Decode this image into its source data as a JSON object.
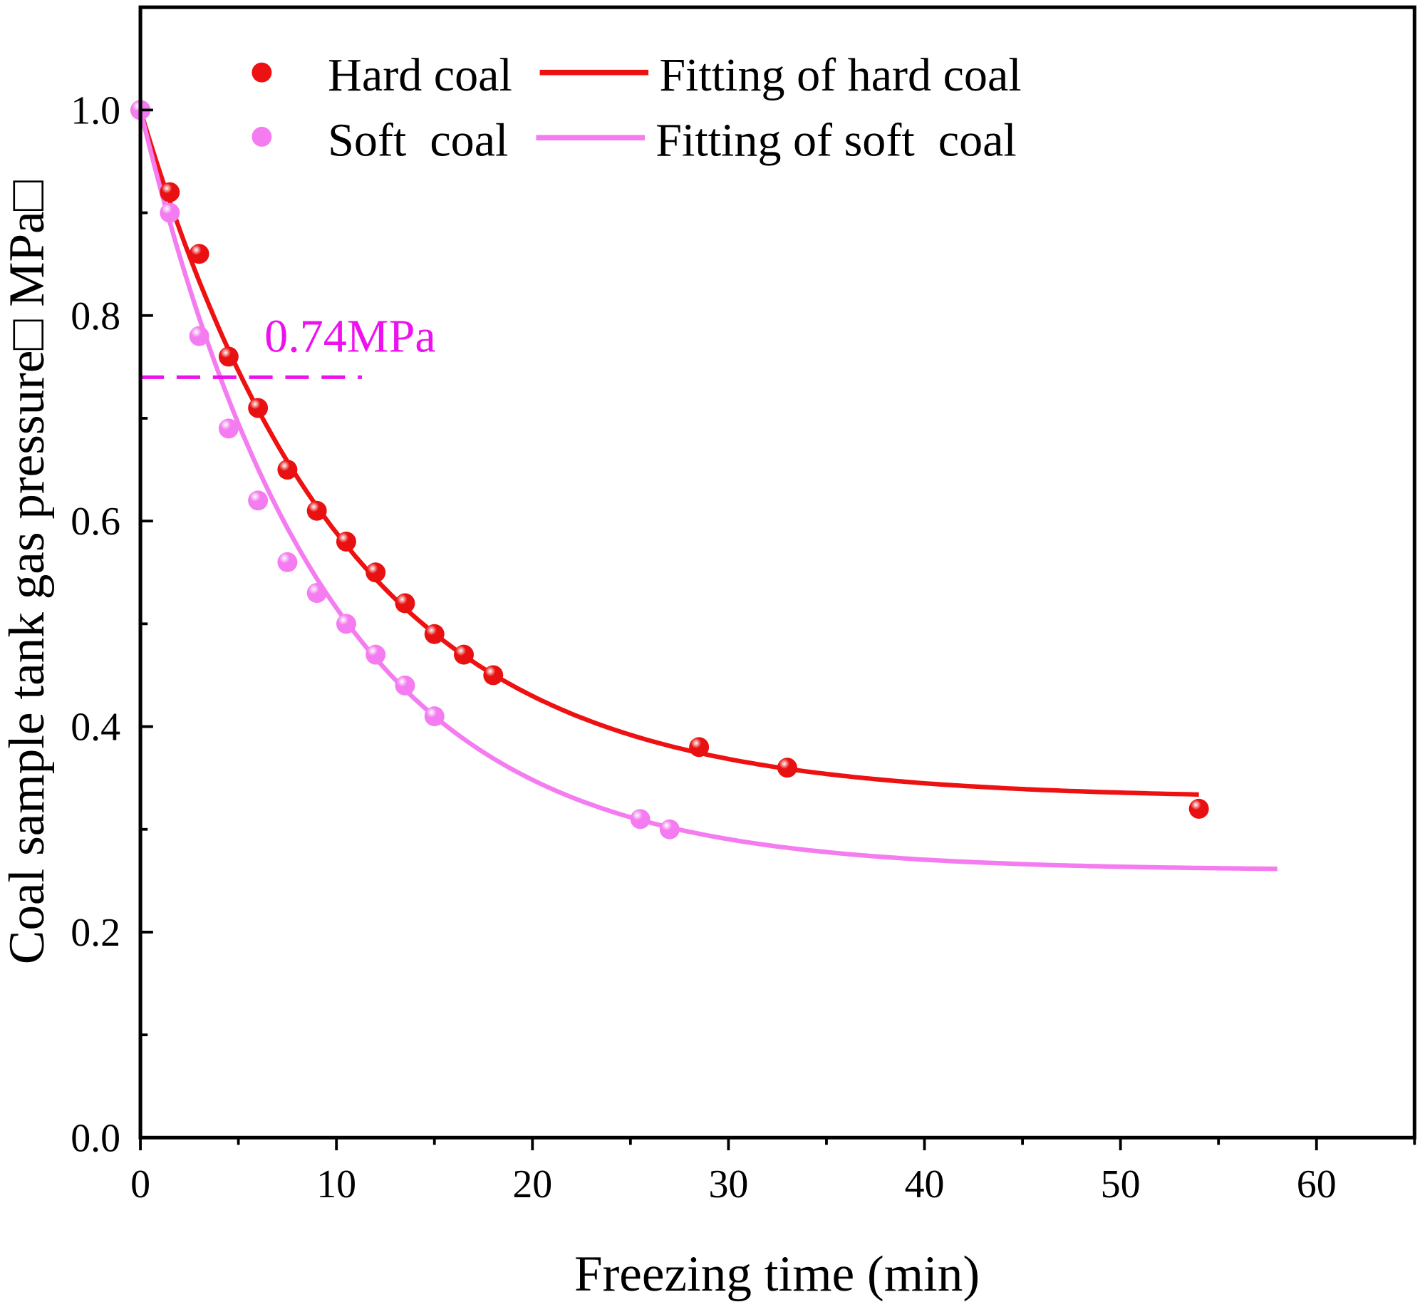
{
  "chart_data": {
    "type": "scatter",
    "title": "",
    "xlabel": "Freezing time (min)",
    "ylabel": "Coal sample tank gas pressure□ MPa□",
    "xlim": [
      0,
      65
    ],
    "ylim": [
      0,
      1.1
    ],
    "x_ticks": [
      0,
      10,
      20,
      30,
      40,
      50,
      60
    ],
    "x_tick_labels": [
      "0",
      "10",
      "20",
      "30",
      "40",
      "50",
      "60"
    ],
    "y_ticks": [
      0,
      0.2,
      0.4,
      0.6,
      0.8,
      1.0
    ],
    "y_tick_labels": [
      "0.0",
      "0.2",
      "0.4",
      "0.6",
      "0.8",
      "1.0"
    ],
    "grid": false,
    "legend_position": "top",
    "series": [
      {
        "name": "Hard coal",
        "kind": "points",
        "color": "#ee1111",
        "x": [
          0,
          1.5,
          3,
          4.5,
          6,
          7.5,
          9,
          10.5,
          12,
          13.5,
          15,
          16.5,
          18,
          28.5,
          33,
          54
        ],
        "y": [
          1.0,
          0.92,
          0.86,
          0.76,
          0.71,
          0.65,
          0.61,
          0.58,
          0.55,
          0.52,
          0.49,
          0.47,
          0.45,
          0.38,
          0.36,
          0.32
        ]
      },
      {
        "name": "Soft  coal",
        "kind": "points",
        "color": "#f47cf0",
        "x": [
          0,
          1.5,
          3,
          4.5,
          6,
          7.5,
          9,
          10.5,
          12,
          13.5,
          15,
          25.5,
          27
        ],
        "y": [
          1.0,
          0.9,
          0.78,
          0.69,
          0.62,
          0.56,
          0.53,
          0.5,
          0.47,
          0.44,
          0.41,
          0.31,
          0.3
        ]
      },
      {
        "name": "Fitting of hard coal",
        "kind": "fit",
        "color": "#ee1111",
        "model": "y = y0 + A*exp(-x/t)",
        "params": {
          "y0": 0.33,
          "A": 0.67,
          "t": 10.5
        },
        "x_range": [
          0,
          54
        ]
      },
      {
        "name": "Fitting of soft  coal",
        "kind": "fit",
        "color": "#f47cf0",
        "model": "y = y0 + A*exp(-x/t)",
        "params": {
          "y0": 0.26,
          "A": 0.74,
          "t": 9.4
        },
        "x_range": [
          0,
          58
        ]
      }
    ],
    "annotations": [
      {
        "text": "0.74MPa",
        "y": 0.74,
        "x_range": [
          0,
          11.3
        ],
        "color": "#ee11ee",
        "style": "dashed"
      }
    ]
  }
}
